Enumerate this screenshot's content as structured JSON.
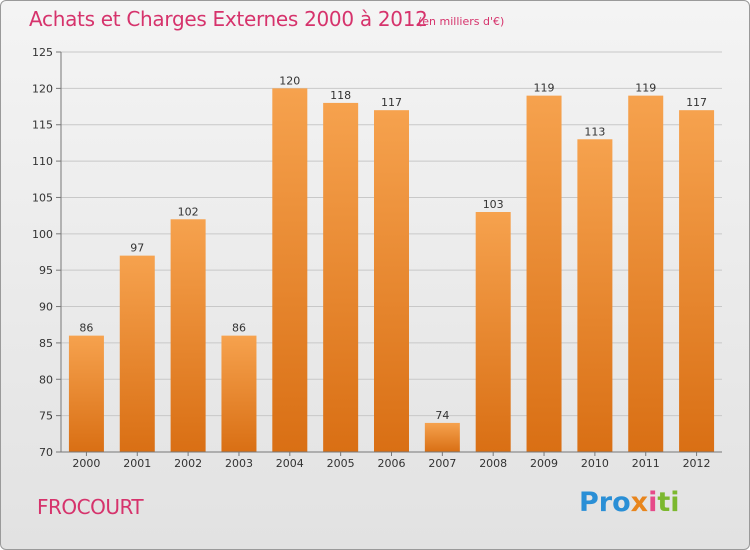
{
  "title": "Achats et Charges Externes 2000 à 2012",
  "subtitle": "(en milliers d'€)",
  "place": "FROCOURT",
  "logo": [
    "Pro",
    "x",
    "i",
    "ti"
  ],
  "colors": {
    "title": "#d6336c",
    "bar_top": "#f6a24e",
    "bar_bottom": "#d96f14",
    "axis": "#777777",
    "grid": "#c8c8c8"
  },
  "chart_data": {
    "type": "bar",
    "categories": [
      "2000",
      "2001",
      "2002",
      "2003",
      "2004",
      "2005",
      "2006",
      "2007",
      "2008",
      "2009",
      "2010",
      "2011",
      "2012"
    ],
    "values": [
      86,
      97,
      102,
      86,
      120,
      118,
      117,
      74,
      103,
      119,
      113,
      119,
      117
    ],
    "title": "Achats et Charges Externes 2000 à 2012",
    "ylim": [
      70,
      125
    ],
    "yticks": [
      70,
      75,
      80,
      85,
      90,
      95,
      100,
      105,
      110,
      115,
      120,
      125
    ],
    "grid": "horizontal",
    "data_labels": true
  }
}
